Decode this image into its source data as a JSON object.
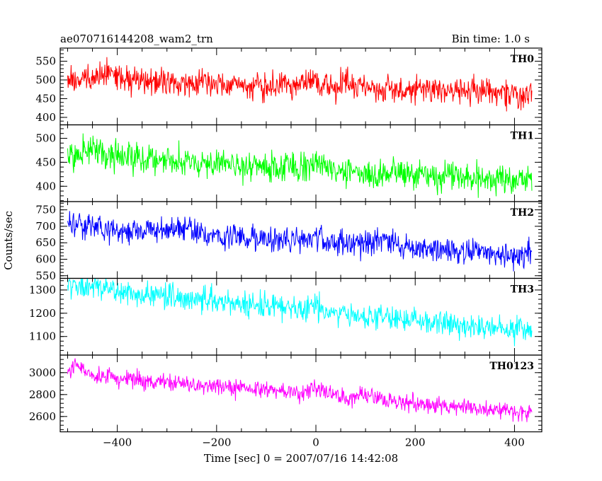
{
  "header": {
    "title": "ae070716144208_wam2_trn",
    "bin_time": "Bin time: 1.0 s"
  },
  "chart_data": {
    "type": "line",
    "ylabel": "Counts/sec",
    "xlabel": "Time [sec] 0 = 2007/07/16 14:42:08",
    "xlim": [
      -515,
      455
    ],
    "data_x_range": [
      -500,
      435
    ],
    "x_ticks": [
      -400,
      -200,
      0,
      200,
      400
    ],
    "x_tick_labels": [
      "−400",
      "−200",
      "0",
      "200",
      "400"
    ],
    "panels": [
      {
        "name": "TH0",
        "color": "#ff0000",
        "ylim": [
          380,
          585
        ],
        "y_ticks": [
          400,
          450,
          500,
          550
        ],
        "y_tick_labels": [
          "400",
          "450",
          "500",
          "550"
        ],
        "trend_start": 505,
        "trend_end": 462,
        "noise": 32,
        "bumps": [
          [
            -420,
            20,
            20
          ],
          [
            0,
            15,
            20
          ],
          [
            60,
            15,
            15
          ]
        ]
      },
      {
        "name": "TH1",
        "color": "#00ff00",
        "ylim": [
          368,
          528
        ],
        "y_ticks": [
          400,
          450,
          500
        ],
        "y_tick_labels": [
          "400",
          "450",
          "500"
        ],
        "trend_start": 465,
        "trend_end": 410,
        "noise": 26,
        "bumps": [
          [
            -440,
            15,
            20
          ],
          [
            0,
            10,
            25
          ]
        ]
      },
      {
        "name": "TH2",
        "color": "#0000ff",
        "ylim": [
          542,
          775
        ],
        "y_ticks": [
          550,
          600,
          650,
          700,
          750
        ],
        "y_tick_labels": [
          "550",
          "600",
          "650",
          "700",
          "750"
        ],
        "trend_start": 700,
        "trend_end": 612,
        "noise": 33,
        "bumps": [
          [
            -480,
            15,
            20
          ],
          [
            -260,
            20,
            25
          ],
          [
            0,
            15,
            20
          ],
          [
            140,
            20,
            25
          ]
        ]
      },
      {
        "name": "TH3",
        "color": "#00ffff",
        "ylim": [
          1020,
          1350
        ],
        "y_ticks": [
          1100,
          1200,
          1300
        ],
        "y_tick_labels": [
          "1100",
          "1200",
          "1300"
        ],
        "trend_start": 1315,
        "trend_end": 1120,
        "noise": 45,
        "bumps": [
          [
            -440,
            20,
            20
          ],
          [
            0,
            20,
            20
          ]
        ]
      },
      {
        "name": "TH0123",
        "color": "#ff00ff",
        "ylim": [
          2460,
          3160
        ],
        "y_ticks": [
          2600,
          2800,
          3000
        ],
        "y_tick_labels": [
          "2600",
          "2800",
          "3000"
        ],
        "trend_start": 2990,
        "trend_end": 2630,
        "noise": 65,
        "bumps": [
          [
            -480,
            60,
            20
          ],
          [
            0,
            80,
            20
          ],
          [
            100,
            40,
            20
          ]
        ]
      }
    ]
  }
}
